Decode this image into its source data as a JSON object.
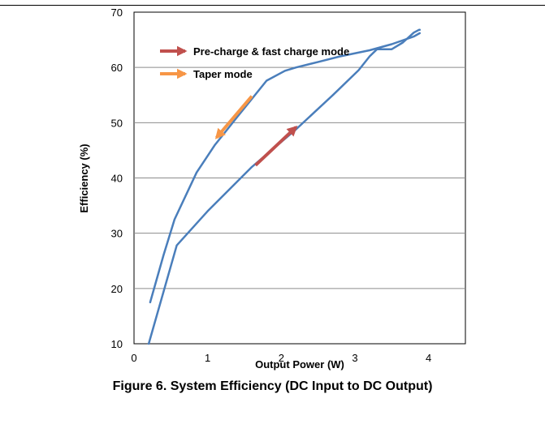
{
  "caption": "Figure 6. System Efficiency (DC Input to DC Output)",
  "chart_data": {
    "type": "line",
    "title": "",
    "xlabel": "Output Power (W)",
    "ylabel": "Efficiency (%)",
    "xlim": [
      0,
      4.5
    ],
    "ylim": [
      10,
      70
    ],
    "xticks": [
      0,
      1,
      2,
      3,
      4
    ],
    "yticks": [
      10,
      20,
      30,
      40,
      50,
      60,
      70
    ],
    "grid": "horizontal",
    "series": [
      {
        "color": "#4A7EBB",
        "x": [
          0.2,
          0.58,
          1.0,
          1.6,
          2.2,
          2.7,
          3.05,
          3.2,
          3.3,
          3.5,
          3.65,
          3.8,
          3.87,
          3.88
        ],
        "y": [
          10,
          27.8,
          34,
          42,
          48.8,
          55,
          59.5,
          62,
          63.3,
          63.3,
          64.5,
          66.3,
          66.8,
          66.8
        ]
      },
      {
        "color": "#4A7EBB",
        "x": [
          3.88,
          3.8,
          3.5,
          3.2,
          2.8,
          2.5,
          2.2,
          2.05,
          1.8,
          1.6,
          1.4,
          1.25,
          1.1,
          0.85,
          0.55,
          0.4,
          0.22
        ],
        "y": [
          66.2,
          65.6,
          64.2,
          63.1,
          62,
          61,
          60,
          59.4,
          57.6,
          54.3,
          51,
          48.5,
          46,
          41,
          32.5,
          26,
          17.5
        ]
      }
    ],
    "legend": [
      {
        "label": "Pre-charge & fast charge mode",
        "color": "#C0504D"
      },
      {
        "label": "Taper mode",
        "color": "#F79646"
      }
    ],
    "legend_position": "top-left",
    "annotations": [
      {
        "label": "Pre-charge & fast charge mode",
        "from": [
          1.65,
          42.3
        ],
        "to": [
          2.2,
          49.2
        ]
      },
      {
        "label": "Taper mode",
        "from": [
          1.6,
          54.8
        ],
        "to": [
          1.12,
          47.3
        ]
      }
    ]
  }
}
